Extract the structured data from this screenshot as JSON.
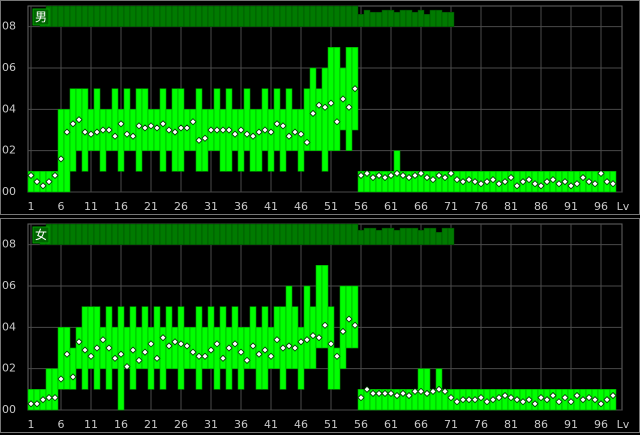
{
  "chart_data": [
    {
      "type": "range",
      "label": "男",
      "x": [
        1,
        2,
        3,
        4,
        5,
        6,
        7,
        8,
        9,
        10,
        11,
        12,
        13,
        14,
        15,
        16,
        17,
        18,
        19,
        20,
        21,
        22,
        23,
        24,
        25,
        26,
        27,
        28,
        29,
        30,
        31,
        32,
        33,
        34,
        35,
        36,
        37,
        38,
        39,
        40,
        41,
        42,
        43,
        44,
        45,
        46,
        47,
        48,
        49,
        50,
        51,
        52,
        53,
        54,
        55,
        56,
        57,
        58,
        59,
        60,
        61,
        62,
        63,
        64,
        65,
        66,
        67,
        68,
        69,
        70,
        71,
        72,
        73,
        74,
        75,
        76,
        77,
        78,
        79,
        80,
        81,
        82,
        83,
        84,
        85,
        86,
        87,
        88,
        89,
        90,
        91,
        92,
        93,
        94,
        95,
        96,
        97,
        98
      ],
      "low": [
        0,
        0,
        0,
        0,
        0,
        0,
        0,
        1,
        2,
        1,
        2,
        2,
        1,
        2,
        2,
        1,
        2,
        2,
        1,
        2,
        2,
        2,
        1,
        2,
        1,
        1,
        2,
        2,
        1,
        1,
        2,
        2,
        1,
        1,
        2,
        1,
        2,
        1,
        1,
        2,
        1,
        2,
        1,
        2,
        2,
        1,
        2,
        2,
        2,
        1,
        2,
        2,
        3,
        2,
        3,
        0,
        0,
        0,
        0,
        0,
        0,
        0,
        0,
        0,
        0,
        0,
        0,
        0,
        0,
        0,
        0,
        0,
        0,
        0,
        0,
        0,
        0,
        0,
        0,
        0,
        0,
        0,
        0,
        0,
        0,
        0,
        0,
        0,
        0,
        0,
        0,
        0,
        0,
        0,
        0,
        0,
        0,
        0
      ],
      "high": [
        1,
        1,
        1,
        1,
        1,
        4,
        4,
        5,
        5,
        5,
        4,
        5,
        4,
        4,
        5,
        4,
        5,
        4,
        5,
        5,
        4,
        4,
        5,
        4,
        5,
        5,
        4,
        4,
        5,
        4,
        4,
        5,
        4,
        5,
        4,
        4,
        5,
        4,
        4,
        5,
        4,
        5,
        4,
        5,
        4,
        4,
        5,
        6,
        5,
        6,
        7,
        7,
        6,
        7,
        7,
        1,
        1,
        1,
        1,
        1,
        1,
        2,
        1,
        1,
        1,
        1,
        1,
        1,
        1,
        1,
        1,
        1,
        1,
        1,
        1,
        1,
        1,
        1,
        1,
        1,
        1,
        1,
        1,
        1,
        1,
        1,
        1,
        1,
        1,
        1,
        1,
        1,
        1,
        1,
        1,
        1,
        1,
        1
      ],
      "mean": [
        0.8,
        0.5,
        0.3,
        0.5,
        0.8,
        1.6,
        2.9,
        3.3,
        3.5,
        2.9,
        2.8,
        2.9,
        3.0,
        3.0,
        2.7,
        3.3,
        2.8,
        2.7,
        3.2,
        3.1,
        3.2,
        3.1,
        3.3,
        3.0,
        2.9,
        3.1,
        3.1,
        3.4,
        2.5,
        2.6,
        3.0,
        3.0,
        3.0,
        3.0,
        2.8,
        3.0,
        2.8,
        2.7,
        2.9,
        3.0,
        2.9,
        3.3,
        3.2,
        2.7,
        2.9,
        2.8,
        2.4,
        3.8,
        4.2,
        4.1,
        4.3,
        3.4,
        4.5,
        4.1,
        5.0,
        0.8,
        0.9,
        0.7,
        0.8,
        0.7,
        0.8,
        0.9,
        0.8,
        0.7,
        0.8,
        0.9,
        0.7,
        0.6,
        0.8,
        0.7,
        0.9,
        0.6,
        0.5,
        0.6,
        0.5,
        0.4,
        0.5,
        0.6,
        0.4,
        0.5,
        0.7,
        0.3,
        0.5,
        0.6,
        0.4,
        0.3,
        0.5,
        0.6,
        0.4,
        0.5,
        0.3,
        0.4,
        0.7,
        0.5,
        0.4,
        0.9,
        0.5,
        0.4
      ],
      "counts": [
        0,
        0,
        6,
        10,
        10,
        10,
        10,
        10,
        10,
        10,
        10,
        10,
        10,
        10,
        10,
        10,
        10,
        10,
        10,
        10,
        10,
        10,
        10,
        10,
        10,
        10,
        10,
        10,
        10,
        10,
        10,
        10,
        10,
        10,
        10,
        10,
        10,
        10,
        10,
        10,
        10,
        10,
        10,
        10,
        10,
        10,
        10,
        10,
        10,
        10,
        10,
        10,
        10,
        10,
        10,
        6,
        8,
        7,
        7,
        8,
        8,
        7,
        8,
        8,
        7,
        8,
        6,
        8,
        8,
        7,
        7,
        0,
        0,
        0,
        0,
        0,
        0,
        0,
        0,
        0,
        0,
        0,
        0,
        0,
        0,
        0,
        0,
        0,
        0,
        0,
        0,
        0,
        0,
        0,
        0,
        0,
        0,
        0
      ],
      "range_color": "#00ff00",
      "mean_color": "#ffffff",
      "count_color": "#007a00",
      "xlim": [
        0.5,
        99.5
      ],
      "xticks": [
        1,
        6,
        11,
        16,
        21,
        26,
        31,
        36,
        41,
        46,
        51,
        56,
        61,
        66,
        71,
        76,
        81,
        86,
        91,
        96
      ],
      "xlabel": "Lv",
      "ylim": [
        0,
        9
      ],
      "yticks": [
        {
          "value": 0,
          "label": "00"
        },
        {
          "value": 2,
          "label": "02"
        },
        {
          "value": 4,
          "label": "04"
        },
        {
          "value": 6,
          "label": "06"
        },
        {
          "value": 8,
          "label": "08"
        }
      ],
      "y2lim": [
        0,
        10
      ],
      "grid": true
    },
    {
      "type": "range",
      "label": "女",
      "x": [
        1,
        2,
        3,
        4,
        5,
        6,
        7,
        8,
        9,
        10,
        11,
        12,
        13,
        14,
        15,
        16,
        17,
        18,
        19,
        20,
        21,
        22,
        23,
        24,
        25,
        26,
        27,
        28,
        29,
        30,
        31,
        32,
        33,
        34,
        35,
        36,
        37,
        38,
        39,
        40,
        41,
        42,
        43,
        44,
        45,
        46,
        47,
        48,
        49,
        50,
        51,
        52,
        53,
        54,
        55,
        56,
        57,
        58,
        59,
        60,
        61,
        62,
        63,
        64,
        65,
        66,
        67,
        68,
        69,
        70,
        71,
        72,
        73,
        74,
        75,
        76,
        77,
        78,
        79,
        80,
        81,
        82,
        83,
        84,
        85,
        86,
        87,
        88,
        89,
        90,
        91,
        92,
        93,
        94,
        95,
        96,
        97,
        98
      ],
      "low": [
        0,
        0,
        0,
        0,
        0,
        1,
        1,
        1,
        2,
        1,
        2,
        1,
        2,
        1,
        2,
        0,
        2,
        1,
        2,
        2,
        1,
        2,
        1,
        2,
        2,
        1,
        2,
        2,
        1,
        2,
        2,
        1,
        2,
        1,
        2,
        1,
        2,
        2,
        1,
        1,
        2,
        2,
        1,
        2,
        2,
        1,
        2,
        2,
        3,
        3,
        1,
        1,
        2,
        3,
        3,
        0,
        0,
        0,
        0,
        0,
        0,
        0,
        0,
        0,
        0,
        0,
        0,
        0,
        0,
        0,
        0,
        0,
        0,
        0,
        0,
        0,
        0,
        0,
        0,
        0,
        0,
        0,
        0,
        0,
        0,
        0,
        0,
        0,
        0,
        0,
        0,
        0,
        0,
        0,
        0,
        0,
        0,
        0
      ],
      "high": [
        1,
        1,
        1,
        2,
        2,
        4,
        4,
        3,
        4,
        5,
        5,
        5,
        4,
        5,
        4,
        5,
        4,
        5,
        4,
        5,
        4,
        5,
        4,
        5,
        4,
        5,
        4,
        4,
        5,
        4,
        5,
        4,
        5,
        4,
        5,
        4,
        4,
        5,
        4,
        5,
        4,
        5,
        5,
        6,
        5,
        4,
        6,
        5,
        7,
        7,
        5,
        3,
        6,
        6,
        6,
        1,
        1,
        1,
        1,
        1,
        1,
        1,
        1,
        1,
        1,
        2,
        2,
        1,
        2,
        1,
        1,
        1,
        1,
        1,
        1,
        1,
        1,
        1,
        1,
        1,
        1,
        1,
        1,
        1,
        1,
        1,
        1,
        1,
        1,
        1,
        1,
        1,
        1,
        1,
        1,
        1,
        1,
        1
      ],
      "mean": [
        0.3,
        0.3,
        0.5,
        0.6,
        0.6,
        1.5,
        2.7,
        1.6,
        3.3,
        2.9,
        2.6,
        3.0,
        3.4,
        3.0,
        2.5,
        2.7,
        2.1,
        2.9,
        2.4,
        2.8,
        3.2,
        2.5,
        3.5,
        3.1,
        3.3,
        3.2,
        3.1,
        2.8,
        2.6,
        2.6,
        2.9,
        3.2,
        2.5,
        3.0,
        3.2,
        2.8,
        2.4,
        3.1,
        2.7,
        2.9,
        2.6,
        3.4,
        3.0,
        3.1,
        3.0,
        3.3,
        3.4,
        3.6,
        3.5,
        4.1,
        3.2,
        2.6,
        3.8,
        4.4,
        4.1,
        0.6,
        1.0,
        0.8,
        0.8,
        0.8,
        0.8,
        0.7,
        0.8,
        0.7,
        0.9,
        0.9,
        0.8,
        0.9,
        1.0,
        0.9,
        0.6,
        0.4,
        0.5,
        0.5,
        0.5,
        0.6,
        0.4,
        0.5,
        0.6,
        0.7,
        0.6,
        0.5,
        0.4,
        0.5,
        0.3,
        0.6,
        0.5,
        0.7,
        0.4,
        0.6,
        0.4,
        0.7,
        0.5,
        0.6,
        0.5,
        0.3,
        0.5,
        0.7
      ],
      "counts": [
        0,
        0,
        7,
        10,
        10,
        10,
        10,
        10,
        10,
        10,
        10,
        10,
        10,
        10,
        10,
        10,
        10,
        10,
        10,
        10,
        10,
        10,
        10,
        10,
        10,
        10,
        10,
        10,
        10,
        10,
        10,
        10,
        10,
        10,
        10,
        10,
        10,
        10,
        10,
        10,
        10,
        10,
        10,
        10,
        10,
        10,
        10,
        10,
        10,
        10,
        10,
        10,
        10,
        10,
        10,
        7,
        8,
        8,
        7,
        8,
        8,
        7,
        8,
        8,
        8,
        7,
        8,
        8,
        6,
        8,
        8,
        0,
        0,
        0,
        0,
        0,
        0,
        0,
        0,
        0,
        0,
        0,
        0,
        0,
        0,
        0,
        0,
        0,
        0,
        0,
        0,
        0,
        0,
        0,
        0,
        0,
        0,
        0
      ],
      "range_color": "#00ff00",
      "mean_color": "#ffffff",
      "count_color": "#007a00",
      "xlim": [
        0.5,
        99.5
      ],
      "xticks": [
        1,
        6,
        11,
        16,
        21,
        26,
        31,
        36,
        41,
        46,
        51,
        56,
        61,
        66,
        71,
        76,
        81,
        86,
        91,
        96
      ],
      "xlabel": "Lv",
      "ylim": [
        0,
        9
      ],
      "yticks": [
        {
          "value": 0,
          "label": "00"
        },
        {
          "value": 2,
          "label": "02"
        },
        {
          "value": 4,
          "label": "04"
        },
        {
          "value": 6,
          "label": "06"
        },
        {
          "value": 8,
          "label": "08"
        }
      ],
      "y2lim": [
        0,
        10
      ],
      "grid": true
    }
  ]
}
